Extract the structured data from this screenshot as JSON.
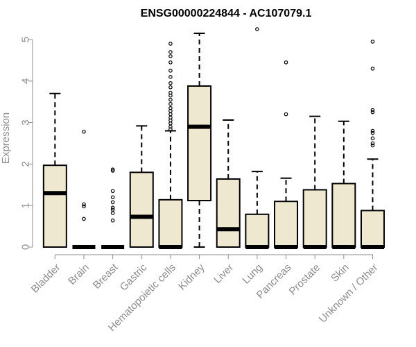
{
  "chart_data": {
    "type": "boxplot",
    "title": "ENSG00000224844 - AC107079.1",
    "xlabel": "",
    "ylabel": "Expression",
    "ylim": [
      0,
      5.2
    ],
    "yticks": [
      0,
      1,
      2,
      3,
      4,
      5
    ],
    "box_fill": "#eee8d0",
    "categories": [
      "Bladder",
      "Brain",
      "Breast",
      "Gastric",
      "Hematopoietic cells",
      "Kidney",
      "Liver",
      "Lung",
      "Pancreas",
      "Prostate",
      "Skin",
      "Unknown / Other"
    ],
    "boxes": [
      {
        "category": "Bladder",
        "whisker_low": 0,
        "q1": 0,
        "median": 1.3,
        "q3": 1.97,
        "whisker_high": 3.7,
        "outliers": []
      },
      {
        "category": "Brain",
        "whisker_low": 0,
        "q1": 0,
        "median": 0,
        "q3": 0,
        "whisker_high": 0,
        "outliers": [
          2.78,
          1.03,
          0.98,
          0.68
        ]
      },
      {
        "category": "Breast",
        "whisker_low": 0,
        "q1": 0,
        "median": 0,
        "q3": 0,
        "whisker_high": 0,
        "outliers": [
          1.87,
          1.84,
          1.35,
          1.2,
          1.08,
          0.95,
          0.9,
          0.82,
          0.64
        ]
      },
      {
        "category": "Gastric",
        "whisker_low": 0,
        "q1": 0,
        "median": 0.73,
        "q3": 1.8,
        "whisker_high": 2.92,
        "outliers": []
      },
      {
        "category": "Hematopoietic cells",
        "whisker_low": 0,
        "q1": 0,
        "median": 0,
        "q3": 1.14,
        "whisker_high": 2.8,
        "outliers": [
          4.9,
          4.7,
          4.6,
          4.45,
          4.25,
          4.1,
          3.95,
          3.85,
          3.72,
          3.65,
          3.55,
          3.45,
          3.35,
          3.28,
          3.2,
          3.12,
          3.05,
          2.98,
          2.9,
          2.84
        ]
      },
      {
        "category": "Kidney",
        "whisker_low": 0,
        "q1": 1.12,
        "median": 2.9,
        "q3": 3.88,
        "whisker_high": 5.15,
        "outliers": []
      },
      {
        "category": "Liver",
        "whisker_low": 0,
        "q1": 0,
        "median": 0.43,
        "q3": 1.64,
        "whisker_high": 3.06,
        "outliers": []
      },
      {
        "category": "Lung",
        "whisker_low": 0,
        "q1": 0,
        "median": 0,
        "q3": 0.79,
        "whisker_high": 1.82,
        "outliers": [
          5.25
        ]
      },
      {
        "category": "Pancreas",
        "whisker_low": 0,
        "q1": 0,
        "median": 0,
        "q3": 1.1,
        "whisker_high": 1.66,
        "outliers": [
          4.45,
          3.2
        ]
      },
      {
        "category": "Prostate",
        "whisker_low": 0,
        "q1": 0,
        "median": 0,
        "q3": 1.38,
        "whisker_high": 3.15,
        "outliers": []
      },
      {
        "category": "Skin",
        "whisker_low": 0,
        "q1": 0,
        "median": 0,
        "q3": 1.53,
        "whisker_high": 3.03,
        "outliers": []
      },
      {
        "category": "Unknown / Other",
        "whisker_low": 0,
        "q1": 0,
        "median": 0,
        "q3": 0.88,
        "whisker_high": 2.12,
        "outliers": [
          4.95,
          4.3,
          3.3,
          3.25,
          2.8,
          2.75,
          2.62,
          2.5,
          2.45
        ]
      }
    ]
  }
}
